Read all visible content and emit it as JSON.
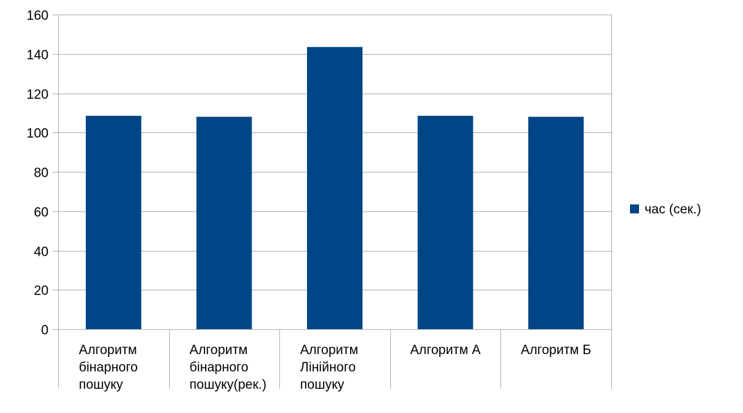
{
  "chart_data": {
    "type": "bar",
    "categories": [
      [
        "Алгоритм",
        "бінарного",
        "пошуку"
      ],
      [
        "Алгоритм",
        "бінарного",
        "пошуку(рек.)"
      ],
      [
        "Алгоритм",
        "Лінійного",
        "пошуку"
      ],
      [
        "Алгоритм А"
      ],
      [
        "Алгоритм Б"
      ]
    ],
    "series": [
      {
        "name": "час (сек.)",
        "values": [
          108.5,
          108,
          143.5,
          108.5,
          108
        ]
      }
    ],
    "ylim": [
      0,
      160
    ],
    "yticks": [
      "0",
      "20",
      "40",
      "60",
      "80",
      "100",
      "120",
      "140",
      "160"
    ],
    "grid": true,
    "legend_position": "right",
    "colors": {
      "bar": "#004586",
      "grid": "#b3b3b3",
      "axis": "#b3b3b3"
    }
  }
}
